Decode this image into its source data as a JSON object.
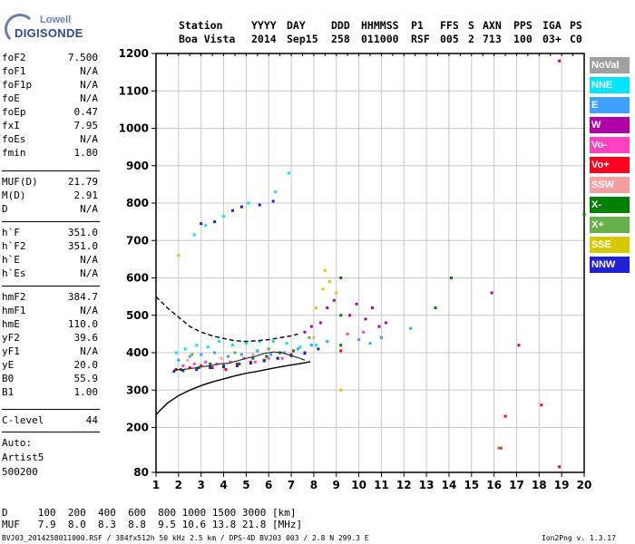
{
  "logo": {
    "line1": "Lowell",
    "line2": "DIGISONDE"
  },
  "header": {
    "row1": [
      "Station",
      "YYYY",
      "DAY",
      "DDD",
      "HHMMSS",
      "P1",
      "FFS",
      "S",
      "AXN",
      "PPS",
      "IGA",
      "PS"
    ],
    "row2": [
      "Boa Vista",
      "2014",
      "Sep15",
      "258",
      "011000",
      "RSF",
      "005",
      "2",
      "713",
      "100",
      "03+",
      "C0"
    ]
  },
  "params_a": [
    {
      "k": "foF2",
      "v": "7.500"
    },
    {
      "k": "foF1",
      "v": "N/A"
    },
    {
      "k": "foF1p",
      "v": "N/A"
    },
    {
      "k": "foE",
      "v": "N/A"
    },
    {
      "k": "foEp",
      "v": "0.47"
    },
    {
      "k": "fxI",
      "v": "7.95"
    },
    {
      "k": "foEs",
      "v": "N/A"
    },
    {
      "k": "fmin",
      "v": "1.80"
    }
  ],
  "params_b": [
    {
      "k": "MUF(D)",
      "v": "21.79"
    },
    {
      "k": "M(D)",
      "v": "2.91"
    },
    {
      "k": "D",
      "v": "N/A"
    }
  ],
  "params_c": [
    {
      "k": "h`F",
      "v": "351.0"
    },
    {
      "k": "h`F2",
      "v": "351.0"
    },
    {
      "k": "h`E",
      "v": "N/A"
    },
    {
      "k": "h`Es",
      "v": "N/A"
    }
  ],
  "params_d": [
    {
      "k": "hmF2",
      "v": "384.7"
    },
    {
      "k": "hmF1",
      "v": "N/A"
    },
    {
      "k": "hmE",
      "v": "110.0"
    },
    {
      "k": "yF2",
      "v": "39.6"
    },
    {
      "k": "yF1",
      "v": "N/A"
    },
    {
      "k": "yE",
      "v": "20.0"
    },
    {
      "k": "B0",
      "v": "55.9"
    },
    {
      "k": "B1",
      "v": "1.00"
    }
  ],
  "clevel": {
    "k": "C-level",
    "v": "44"
  },
  "auto": {
    "line1": "Auto:",
    "line2": "Artist5",
    "line3": "500200"
  },
  "legend": [
    {
      "label": "NoVal",
      "color": "#a0a0a0"
    },
    {
      "label": "NNE",
      "color": "#00e5ff"
    },
    {
      "label": "E",
      "color": "#3ea0ff"
    },
    {
      "label": "W",
      "color": "#b000a8"
    },
    {
      "label": "Vo-",
      "color": "#ff40c0"
    },
    {
      "label": "Vo+",
      "color": "#ff0020"
    },
    {
      "label": "SSW",
      "color": "#f4a0a0"
    },
    {
      "label": "X-",
      "color": "#008000"
    },
    {
      "label": "X+",
      "color": "#66b04a"
    },
    {
      "label": "SSE",
      "color": "#d8c800"
    },
    {
      "label": "NNW",
      "color": "#2020d8"
    }
  ],
  "bottom": {
    "d_row": "D     100  200  400  600  800 1000 1500 3000 [km]",
    "muf_row": "MUF   7.9  8.0  8.3  8.8  9.5 10.6 13.8 21.8 [MHz]",
    "footer_left": "BVJ03_2014258011000.RSF / 384fx512h 50 kHz 2.5 km / DPS-4D BVJ03 003 / 2.8 N 299.3 E",
    "footer_right": "Ion2Png v. 1.3.17"
  },
  "chart_data": {
    "type": "scatter",
    "xlim": [
      1,
      20
    ],
    "ylim": [
      80,
      1200
    ],
    "x_ticks": [
      1,
      2,
      3,
      4,
      5,
      6,
      7,
      8,
      9,
      10,
      11,
      12,
      13,
      14,
      15,
      16,
      17,
      18,
      19,
      20
    ],
    "y_ticks": [
      80,
      200,
      300,
      400,
      500,
      600,
      700,
      800,
      900,
      1000,
      1100,
      1200
    ],
    "grid": true,
    "series": [
      {
        "name": "NNE",
        "color": "#00e5ff",
        "points": [
          [
            1.9,
            400
          ],
          [
            2.3,
            410
          ],
          [
            2.8,
            420
          ],
          [
            3.3,
            415
          ],
          [
            3.8,
            430
          ],
          [
            4.4,
            420
          ],
          [
            5.0,
            425
          ],
          [
            5.6,
            430
          ],
          [
            6.2,
            430
          ],
          [
            6.8,
            425
          ],
          [
            7.4,
            415
          ],
          [
            8.1,
            420
          ],
          [
            3.2,
            740
          ],
          [
            4.0,
            765
          ],
          [
            5.1,
            800
          ],
          [
            6.3,
            830
          ],
          [
            6.9,
            880
          ],
          [
            2.7,
            715
          ]
        ]
      },
      {
        "name": "E",
        "color": "#3ea0ff",
        "points": [
          [
            2.0,
            380
          ],
          [
            2.5,
            390
          ],
          [
            3.0,
            395
          ],
          [
            3.6,
            400
          ],
          [
            4.2,
            390
          ],
          [
            4.8,
            395
          ],
          [
            5.5,
            405
          ],
          [
            6.1,
            395
          ],
          [
            6.7,
            400
          ],
          [
            7.3,
            410
          ],
          [
            7.9,
            420
          ],
          [
            8.6,
            430
          ],
          [
            10.0,
            435
          ],
          [
            10.5,
            425
          ],
          [
            11.0,
            440
          ],
          [
            12.3,
            465
          ]
        ]
      },
      {
        "name": "W",
        "color": "#b000a8",
        "points": [
          [
            8.3,
            480
          ],
          [
            8.6,
            520
          ],
          [
            8.9,
            540
          ],
          [
            9.6,
            500
          ],
          [
            9.9,
            530
          ],
          [
            10.3,
            490
          ],
          [
            10.6,
            520
          ],
          [
            10.9,
            470
          ],
          [
            11.2,
            480
          ],
          [
            7.6,
            455
          ],
          [
            7.9,
            470
          ],
          [
            18.9,
            1180
          ],
          [
            18.9,
            95
          ],
          [
            15.9,
            560
          ],
          [
            17.1,
            420
          ]
        ]
      },
      {
        "name": "Vo-",
        "color": "#ff40c0",
        "points": [
          [
            2.2,
            365
          ],
          [
            2.7,
            370
          ],
          [
            3.2,
            375
          ],
          [
            3.7,
            370
          ],
          [
            4.3,
            375
          ],
          [
            4.9,
            385
          ],
          [
            5.4,
            375
          ],
          [
            6.0,
            385
          ],
          [
            6.6,
            385
          ],
          [
            9.5,
            450
          ],
          [
            10.2,
            455
          ]
        ]
      },
      {
        "name": "Vo+",
        "color": "#ff0020",
        "points": [
          [
            1.9,
            355
          ],
          [
            2.5,
            360
          ],
          [
            3.0,
            365
          ],
          [
            3.5,
            360
          ],
          [
            4.1,
            355
          ],
          [
            4.6,
            370
          ],
          [
            5.2,
            375
          ],
          [
            5.8,
            380
          ],
          [
            6.4,
            385
          ],
          [
            7.0,
            395
          ],
          [
            7.6,
            400
          ],
          [
            9.2,
            405
          ],
          [
            16.3,
            145
          ],
          [
            16.5,
            230
          ],
          [
            18.1,
            260
          ]
        ]
      },
      {
        "name": "SSW",
        "color": "#f4a0a0",
        "points": [
          [
            2.4,
            380
          ],
          [
            3.9,
            385
          ],
          [
            5.3,
            395
          ],
          [
            6.5,
            400
          ],
          [
            8.0,
            440
          ]
        ]
      },
      {
        "name": "X-",
        "color": "#008000",
        "points": [
          [
            2.1,
            355
          ],
          [
            2.9,
            360
          ],
          [
            3.4,
            370
          ],
          [
            4.0,
            365
          ],
          [
            4.7,
            370
          ],
          [
            5.3,
            385
          ],
          [
            5.9,
            390
          ],
          [
            6.5,
            400
          ],
          [
            7.1,
            405
          ],
          [
            9.2,
            600
          ],
          [
            9.2,
            500
          ],
          [
            9.2,
            420
          ],
          [
            13.4,
            520
          ],
          [
            14.1,
            600
          ],
          [
            20.0,
            770
          ]
        ]
      },
      {
        "name": "X+",
        "color": "#66b04a",
        "points": [
          [
            2.6,
            395
          ],
          [
            4.5,
            400
          ],
          [
            6.0,
            410
          ],
          [
            7.8,
            440
          ],
          [
            16.2,
            145
          ]
        ]
      },
      {
        "name": "SSE",
        "color": "#d8c800",
        "points": [
          [
            8.1,
            520
          ],
          [
            8.4,
            570
          ],
          [
            8.7,
            590
          ],
          [
            9.0,
            560
          ],
          [
            8.5,
            620
          ],
          [
            2.0,
            660
          ],
          [
            9.2,
            300
          ]
        ]
      },
      {
        "name": "NNW",
        "color": "#2020d8",
        "points": [
          [
            1.8,
            350
          ],
          [
            2.2,
            352
          ],
          [
            2.8,
            355
          ],
          [
            3.4,
            360
          ],
          [
            4.0,
            362
          ],
          [
            4.6,
            365
          ],
          [
            5.2,
            372
          ],
          [
            5.8,
            378
          ],
          [
            6.4,
            385
          ],
          [
            7.0,
            392
          ],
          [
            7.6,
            398
          ],
          [
            8.2,
            410
          ],
          [
            3.0,
            745
          ],
          [
            3.6,
            750
          ],
          [
            4.4,
            780
          ],
          [
            5.6,
            795
          ],
          [
            6.2,
            805
          ],
          [
            4.8,
            790
          ]
        ]
      }
    ],
    "solid_curve": {
      "color": "#000000",
      "x": [
        1,
        1.5,
        2,
        2.5,
        3,
        3.5,
        4,
        4.5,
        5,
        5.5,
        6,
        6.5,
        7,
        7.5,
        7.85
      ],
      "y": [
        235,
        265,
        285,
        300,
        312,
        322,
        330,
        338,
        345,
        350,
        356,
        362,
        367,
        372,
        376
      ]
    },
    "dashed_curve": {
      "color": "#000000",
      "x": [
        1,
        1.5,
        2,
        2.5,
        3,
        3.5,
        4,
        4.5,
        5,
        5.5,
        6,
        6.5,
        7,
        7.3
      ],
      "y": [
        550,
        520,
        495,
        470,
        455,
        445,
        438,
        432,
        430,
        432,
        435,
        440,
        445,
        450
      ]
    },
    "profile_curve": {
      "color": "#303030",
      "x": [
        1.8,
        2.2,
        2.6,
        3.0,
        3.4,
        3.8,
        4.2,
        4.6,
        5.0,
        5.4,
        5.8,
        6.2,
        6.6,
        7.0,
        7.4,
        7.6
      ],
      "y": [
        355,
        355,
        358,
        362,
        365,
        370,
        372,
        378,
        385,
        390,
        398,
        402,
        400,
        392,
        385,
        380
      ]
    }
  }
}
